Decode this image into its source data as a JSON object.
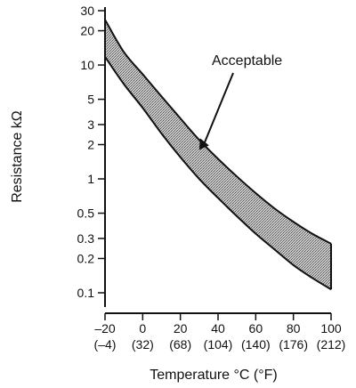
{
  "chart_data": {
    "type": "area",
    "title": "",
    "xlabel": "Temperature °C (°F)",
    "ylabel": "Resistance kΩ",
    "y_scale": "log",
    "xlim": [
      -20,
      100
    ],
    "ylim": [
      0.1,
      30
    ],
    "x_ticks": [
      -20,
      0,
      20,
      40,
      60,
      80,
      100
    ],
    "x_tick_labels": [
      "–20",
      "0",
      "20",
      "40",
      "60",
      "80",
      "100"
    ],
    "x_tick_sublabels": [
      "(–4)",
      "(32)",
      "(68)",
      "(104)",
      "(140)",
      "(176)",
      "(212)"
    ],
    "y_ticks": [
      0.1,
      0.2,
      0.3,
      0.5,
      1,
      2,
      3,
      5,
      10,
      20,
      30
    ],
    "y_tick_labels": [
      "0.1",
      "0.2",
      "0.3",
      "0.5",
      "1",
      "2",
      "3",
      "5",
      "10",
      "20",
      "30"
    ],
    "band": {
      "x": [
        -20,
        -10,
        0,
        10,
        20,
        30,
        40,
        50,
        60,
        70,
        80,
        90,
        100
      ],
      "upper": [
        25,
        13,
        8.3,
        5.3,
        3.4,
        2.2,
        1.5,
        1.05,
        0.75,
        0.55,
        0.42,
        0.33,
        0.27
      ],
      "lower": [
        11.8,
        6.8,
        4.2,
        2.5,
        1.55,
        1.0,
        0.68,
        0.47,
        0.33,
        0.24,
        0.175,
        0.135,
        0.107
      ]
    },
    "annotation": {
      "text": "Acceptable",
      "points_to": {
        "x": 30,
        "y": 1.8
      }
    },
    "grid": false,
    "legend": "none"
  }
}
